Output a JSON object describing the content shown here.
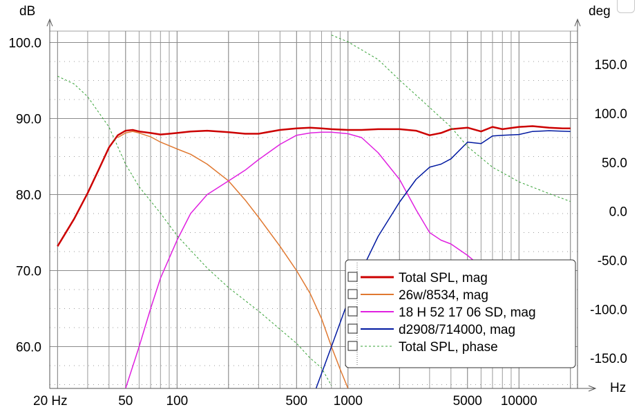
{
  "chart_data": {
    "type": "line",
    "left_axis_label": "dB",
    "right_axis_label": "deg",
    "x_axis_label": "Hz",
    "x_scale": "log",
    "x_range": [
      18,
      22000
    ],
    "left_range": [
      54.5,
      101.5
    ],
    "right_range": [
      -181,
      184
    ],
    "left_ticks": [
      "100.0",
      "90.0",
      "80.0",
      "70.0",
      "60.0"
    ],
    "left_tick_values": [
      100,
      90,
      80,
      70,
      60
    ],
    "right_ticks": [
      "150.0",
      "100.0",
      "50.0",
      "0.0",
      "-50.0",
      "-100.0",
      "-150.0"
    ],
    "right_tick_values": [
      150,
      100,
      50,
      0,
      -50,
      -100,
      -150
    ],
    "x_ticks": [
      "20 Hz",
      "50",
      "100",
      "500",
      "1000",
      "5000",
      "10000"
    ],
    "x_tick_values": [
      20,
      50,
      100,
      500,
      1000,
      5000,
      10000
    ],
    "grid": true,
    "legend_position": "bottom-right",
    "series": [
      {
        "name": "Total SPL, mag",
        "axis": "left",
        "color": "#cc0000",
        "width": 2.5,
        "dashed": false,
        "points": [
          [
            20,
            73.2
          ],
          [
            25,
            76.8
          ],
          [
            30,
            80.2
          ],
          [
            35,
            83.4
          ],
          [
            40,
            86.2
          ],
          [
            45,
            87.8
          ],
          [
            50,
            88.4
          ],
          [
            55,
            88.5
          ],
          [
            60,
            88.3
          ],
          [
            70,
            88.1
          ],
          [
            80,
            87.9
          ],
          [
            90,
            88.0
          ],
          [
            100,
            88.1
          ],
          [
            120,
            88.3
          ],
          [
            150,
            88.4
          ],
          [
            200,
            88.2
          ],
          [
            250,
            88.0
          ],
          [
            300,
            88.0
          ],
          [
            400,
            88.5
          ],
          [
            500,
            88.7
          ],
          [
            600,
            88.8
          ],
          [
            700,
            88.7
          ],
          [
            800,
            88.6
          ],
          [
            1000,
            88.5
          ],
          [
            1200,
            88.5
          ],
          [
            1500,
            88.6
          ],
          [
            2000,
            88.6
          ],
          [
            2500,
            88.4
          ],
          [
            3000,
            87.8
          ],
          [
            3500,
            88.1
          ],
          [
            4000,
            88.6
          ],
          [
            5000,
            88.8
          ],
          [
            6000,
            88.3
          ],
          [
            7000,
            88.9
          ],
          [
            8000,
            88.6
          ],
          [
            10000,
            88.9
          ],
          [
            12000,
            89.0
          ],
          [
            15000,
            88.8
          ],
          [
            18000,
            88.7
          ],
          [
            20000,
            88.7
          ]
        ]
      },
      {
        "name": "26w/8534, mag",
        "axis": "left",
        "color": "#e07830",
        "width": 1.5,
        "dashed": false,
        "points": [
          [
            45,
            87.5
          ],
          [
            50,
            88.1
          ],
          [
            55,
            88.3
          ],
          [
            60,
            88.1
          ],
          [
            70,
            87.6
          ],
          [
            80,
            86.9
          ],
          [
            100,
            86.0
          ],
          [
            120,
            85.3
          ],
          [
            150,
            84.0
          ],
          [
            200,
            81.8
          ],
          [
            250,
            79.3
          ],
          [
            300,
            77.0
          ],
          [
            400,
            73.2
          ],
          [
            500,
            70.0
          ],
          [
            600,
            67.0
          ],
          [
            700,
            63.7
          ],
          [
            800,
            60.0
          ],
          [
            900,
            57.0
          ],
          [
            1000,
            54.5
          ]
        ]
      },
      {
        "name": "18 H 52 17 06 SD, mag",
        "axis": "left",
        "color": "#e020e0",
        "width": 1.5,
        "dashed": false,
        "points": [
          [
            50,
            54.5
          ],
          [
            60,
            60.0
          ],
          [
            70,
            65.0
          ],
          [
            80,
            69.0
          ],
          [
            100,
            74.0
          ],
          [
            120,
            77.5
          ],
          [
            150,
            80.0
          ],
          [
            200,
            81.8
          ],
          [
            250,
            83.2
          ],
          [
            300,
            84.6
          ],
          [
            400,
            86.6
          ],
          [
            500,
            87.8
          ],
          [
            600,
            88.1
          ],
          [
            700,
            88.2
          ],
          [
            800,
            88.2
          ],
          [
            1000,
            88.0
          ],
          [
            1200,
            87.5
          ],
          [
            1500,
            85.5
          ],
          [
            2000,
            82.0
          ],
          [
            2500,
            78.0
          ],
          [
            3000,
            75.0
          ],
          [
            3500,
            74.0
          ],
          [
            4000,
            73.5
          ],
          [
            5000,
            72.0
          ],
          [
            6000,
            70.5
          ],
          [
            7000,
            68.8
          ],
          [
            8000,
            68.2
          ]
        ]
      },
      {
        "name": "d2908/714000, mag",
        "axis": "left",
        "color": "#0018a0",
        "width": 1.5,
        "dashed": false,
        "points": [
          [
            650,
            54.5
          ],
          [
            800,
            60.0
          ],
          [
            1000,
            66.0
          ],
          [
            1200,
            70.0
          ],
          [
            1500,
            74.5
          ],
          [
            2000,
            79.0
          ],
          [
            2500,
            82.0
          ],
          [
            3000,
            83.6
          ],
          [
            3500,
            84.0
          ],
          [
            4000,
            84.7
          ],
          [
            5000,
            86.9
          ],
          [
            6000,
            86.7
          ],
          [
            7000,
            87.7
          ],
          [
            8000,
            87.8
          ],
          [
            10000,
            87.9
          ],
          [
            12000,
            88.3
          ],
          [
            15000,
            88.4
          ],
          [
            20000,
            88.3
          ]
        ]
      },
      {
        "name": "Total SPL, phase",
        "axis": "right",
        "color": "#33a033",
        "width": 1,
        "dashed": true,
        "points": [
          [
            20,
            138
          ],
          [
            25,
            130
          ],
          [
            30,
            117
          ],
          [
            40,
            86
          ],
          [
            50,
            48
          ],
          [
            60,
            25
          ],
          [
            80,
            -2
          ],
          [
            100,
            -25
          ],
          [
            150,
            -58
          ],
          [
            200,
            -78
          ],
          [
            300,
            -102
          ],
          [
            500,
            -135
          ],
          [
            600,
            -150
          ],
          [
            700,
            -160
          ],
          [
            800,
            -178
          ],
          [
            800,
            180
          ],
          [
            1000,
            173
          ],
          [
            1500,
            155
          ],
          [
            2000,
            134
          ],
          [
            3000,
            106
          ],
          [
            4000,
            86
          ],
          [
            5000,
            66
          ],
          [
            7000,
            45
          ],
          [
            10000,
            30
          ],
          [
            15000,
            18
          ],
          [
            20000,
            10
          ]
        ]
      }
    ]
  }
}
